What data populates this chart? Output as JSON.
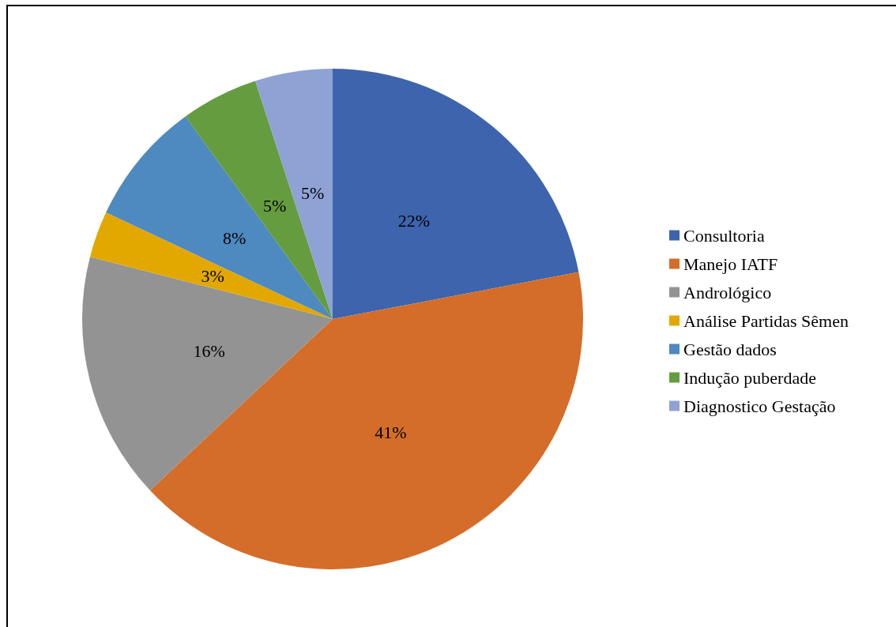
{
  "chart_data": {
    "type": "pie",
    "categories": [
      "Consultoria",
      "Manejo IATF",
      "Andrológico",
      "Análise Partidas Sêmen",
      "Gestão dados",
      "Indução puberdade",
      "Diagnostico Gestação"
    ],
    "values": [
      22,
      41,
      16,
      3,
      8,
      5,
      5
    ],
    "colors": [
      "#3d64ad",
      "#d46d2a",
      "#939393",
      "#e2a800",
      "#4e89bf",
      "#659c3f",
      "#8fa2d4"
    ],
    "value_labels": [
      "22%",
      "41%",
      "16%",
      "3%",
      "8%",
      "5%",
      "5%"
    ],
    "legend": "right"
  }
}
